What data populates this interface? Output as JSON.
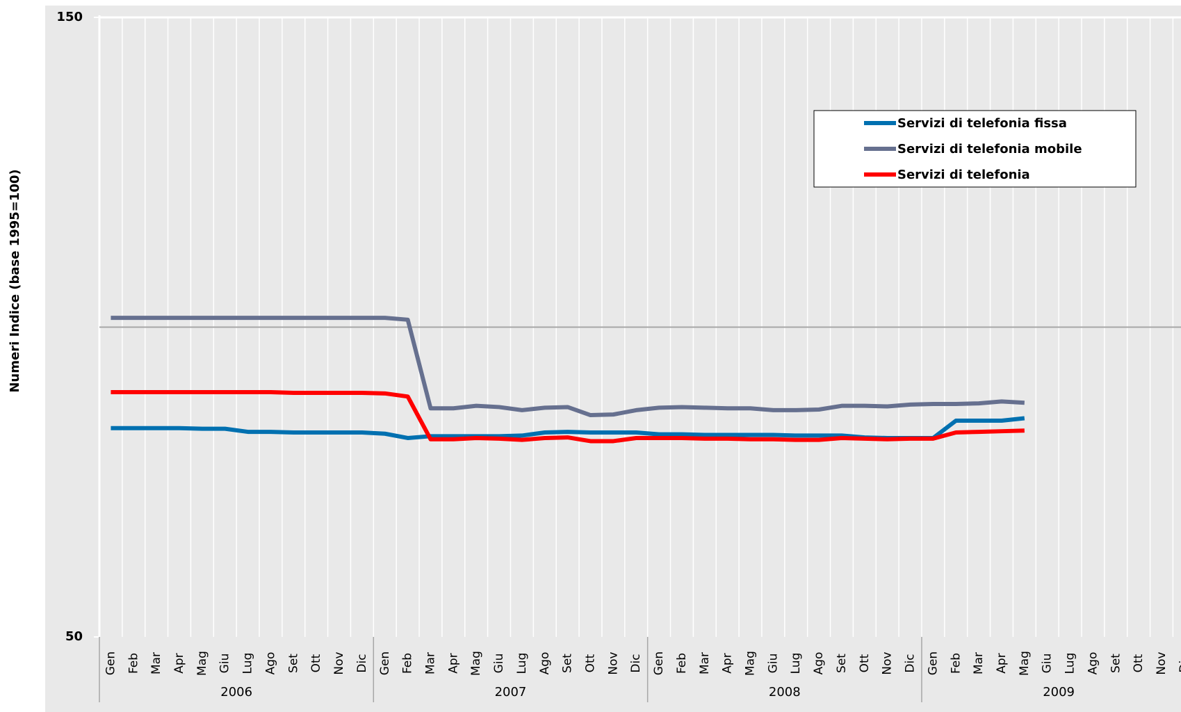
{
  "chart_data": {
    "type": "line",
    "y_axis_label": "Numeri Indice (base 1995=100)",
    "categories": [
      "Gen",
      "Feb",
      "Mar",
      "Apr",
      "Mag",
      "Giu",
      "Lug",
      "Ago",
      "Set",
      "Ott",
      "Nov",
      "Dic",
      "Gen",
      "Feb",
      "Mar",
      "Apr",
      "Mag",
      "Giu",
      "Lug",
      "Ago",
      "Set",
      "Ott",
      "Nov",
      "Dic",
      "Gen",
      "Feb",
      "Mar",
      "Apr",
      "Mag",
      "Giu",
      "Lug",
      "Ago",
      "Set",
      "Ott",
      "Nov",
      "Dic",
      "Gen",
      "Feb",
      "Mar",
      "Apr",
      "Mag",
      "Giu",
      "Lug",
      "Ago",
      "Set",
      "Ott",
      "Nov",
      "Dic"
    ],
    "years": [
      "2006",
      "2007",
      "2008",
      "2009"
    ],
    "ylim": [
      50,
      150
    ],
    "yticks": [
      50,
      150
    ],
    "reference_line": 100,
    "grid": true,
    "legend": "top-right",
    "series": [
      {
        "name": "Servizi di telefonia fissa",
        "color": "#0070b0",
        "values": [
          83.7,
          83.7,
          83.7,
          83.7,
          83.6,
          83.6,
          83.1,
          83.1,
          83.0,
          83.0,
          83.0,
          83.0,
          82.8,
          82.1,
          82.4,
          82.4,
          82.4,
          82.4,
          82.5,
          83.0,
          83.1,
          83.0,
          83.0,
          83.0,
          82.7,
          82.7,
          82.6,
          82.6,
          82.6,
          82.6,
          82.5,
          82.5,
          82.5,
          82.2,
          82.1,
          82.1,
          82.1,
          84.9,
          84.9,
          84.9,
          85.3,
          null,
          null,
          null,
          null,
          null,
          null,
          null
        ]
      },
      {
        "name": "Servizi di telefonia mobile",
        "color": "#66708f",
        "values": [
          101.5,
          101.5,
          101.5,
          101.5,
          101.5,
          101.5,
          101.5,
          101.5,
          101.5,
          101.5,
          101.5,
          101.5,
          101.5,
          101.2,
          86.9,
          86.9,
          87.3,
          87.1,
          86.6,
          87.0,
          87.1,
          85.8,
          85.9,
          86.6,
          87.0,
          87.1,
          87.0,
          86.9,
          86.9,
          86.6,
          86.6,
          86.7,
          87.3,
          87.3,
          87.2,
          87.5,
          87.6,
          87.6,
          87.7,
          88.0,
          87.8,
          null,
          null,
          null,
          null,
          null,
          null,
          null
        ]
      },
      {
        "name": "Servizi di telefonia",
        "color": "#ff0000",
        "values": [
          89.5,
          89.5,
          89.5,
          89.5,
          89.5,
          89.5,
          89.5,
          89.5,
          89.4,
          89.4,
          89.4,
          89.4,
          89.3,
          88.8,
          81.9,
          81.9,
          82.1,
          82.0,
          81.8,
          82.1,
          82.2,
          81.6,
          81.6,
          82.1,
          82.1,
          82.1,
          82.0,
          82.0,
          81.9,
          81.9,
          81.8,
          81.8,
          82.1,
          82.0,
          81.9,
          82.0,
          82.0,
          83.0,
          83.1,
          83.2,
          83.3,
          null,
          null,
          null,
          null,
          null,
          null,
          null
        ]
      }
    ]
  }
}
